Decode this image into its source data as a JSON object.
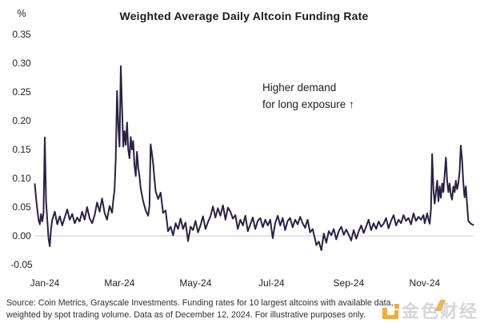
{
  "title": "Weighted Average Daily Altcoin Funding Rate",
  "y_axis": {
    "unit_label": "%"
  },
  "annotation": {
    "line1": "Higher demand",
    "line2": "for long exposure ↑"
  },
  "footer": {
    "line1": "Source: Coin Metrics, Grayscale Investments. Funding rates for 10 largest altcoins with available data,",
    "line2": "weighted by spot trading volume. Data as of December 12, 2024. For illustrative purposes only."
  },
  "watermark": {
    "text": "金色财经",
    "logo_color": "#f5a41e"
  },
  "colors": {
    "line": "#2b2144",
    "gridline": "#c9c9c9",
    "text": "#1d1d1d"
  },
  "chart_data": {
    "type": "line",
    "title": "Weighted Average Daily Altcoin Funding Rate",
    "xlabel": "",
    "ylabel": "%",
    "ylim": [
      -0.05,
      0.35
    ],
    "xlim_days": [
      -8,
      346
    ],
    "x_unit": "days from 2024-01-01 (negative = late Dec 2023); data through Dec 12, 2024",
    "grid": "single horizontal gridline at y=0.00 only",
    "legend": "none",
    "gridline_y": 0.0,
    "y_ticks": [
      {
        "label": "0.35",
        "value": 0.35
      },
      {
        "label": "0.30",
        "value": 0.3
      },
      {
        "label": "0.25",
        "value": 0.25
      },
      {
        "label": "0.20",
        "value": 0.2
      },
      {
        "label": "0.15",
        "value": 0.15
      },
      {
        "label": "0.10",
        "value": 0.1
      },
      {
        "label": "0.05",
        "value": 0.05
      },
      {
        "label": "0.00",
        "value": 0.0
      },
      {
        "label": "-0.05",
        "value": -0.05
      }
    ],
    "x_ticks": [
      {
        "label": "Jan-24",
        "day": 0
      },
      {
        "label": "Mar-24",
        "day": 60
      },
      {
        "label": "May-24",
        "day": 121
      },
      {
        "label": "Jul-24",
        "day": 182
      },
      {
        "label": "Sep-24",
        "day": 244
      },
      {
        "label": "Nov-24",
        "day": 305
      }
    ],
    "annotations": [
      "Higher demand for long exposure ↑"
    ],
    "series": [
      {
        "name": "Weighted average daily altcoin funding rate (%)",
        "color": "#2b2144",
        "points": [
          [
            -8,
            0.09
          ],
          [
            -7,
            0.065
          ],
          [
            -6,
            0.045
          ],
          [
            -5,
            0.028
          ],
          [
            -4,
            0.02
          ],
          [
            -3,
            0.038
          ],
          [
            -2,
            0.025
          ],
          [
            -1,
            0.04
          ],
          [
            0,
            0.171
          ],
          [
            1,
            0.06
          ],
          [
            2,
            0.028
          ],
          [
            3,
            -0.005
          ],
          [
            4,
            -0.018
          ],
          [
            5,
            0.012
          ],
          [
            6,
            0.028
          ],
          [
            8,
            0.042
          ],
          [
            10,
            0.02
          ],
          [
            12,
            0.034
          ],
          [
            14,
            0.018
          ],
          [
            16,
            0.032
          ],
          [
            18,
            0.046
          ],
          [
            20,
            0.028
          ],
          [
            22,
            0.038
          ],
          [
            24,
            0.022
          ],
          [
            26,
            0.032
          ],
          [
            28,
            0.025
          ],
          [
            30,
            0.042
          ],
          [
            32,
            0.028
          ],
          [
            34,
            0.05
          ],
          [
            36,
            0.03
          ],
          [
            38,
            0.022
          ],
          [
            40,
            0.036
          ],
          [
            42,
            0.058
          ],
          [
            44,
            0.042
          ],
          [
            46,
            0.065
          ],
          [
            48,
            0.04
          ],
          [
            50,
            0.028
          ],
          [
            52,
            0.052
          ],
          [
            54,
            0.04
          ],
          [
            55,
            0.062
          ],
          [
            56,
            0.08
          ],
          [
            57,
            0.135
          ],
          [
            58,
            0.252
          ],
          [
            59,
            0.19
          ],
          [
            60,
            0.155
          ],
          [
            61,
            0.295
          ],
          [
            62,
            0.225
          ],
          [
            63,
            0.155
          ],
          [
            64,
            0.182
          ],
          [
            65,
            0.158
          ],
          [
            66,
            0.197
          ],
          [
            67,
            0.15
          ],
          [
            68,
            0.135
          ],
          [
            69,
            0.172
          ],
          [
            70,
            0.15
          ],
          [
            71,
            0.165
          ],
          [
            72,
            0.122
          ],
          [
            73,
            0.104
          ],
          [
            74,
            0.146
          ],
          [
            75,
            0.118
          ],
          [
            76,
            0.104
          ],
          [
            77,
            0.082
          ],
          [
            79,
            0.06
          ],
          [
            81,
            0.044
          ],
          [
            83,
            0.035
          ],
          [
            84,
            0.052
          ],
          [
            85,
            0.159
          ],
          [
            86,
            0.143
          ],
          [
            87,
            0.125
          ],
          [
            88,
            0.1
          ],
          [
            89,
            0.077
          ],
          [
            91,
            0.064
          ],
          [
            93,
            0.075
          ],
          [
            95,
            0.04
          ],
          [
            97,
            0.044
          ],
          [
            99,
            0.008
          ],
          [
            101,
            0.016
          ],
          [
            103,
            0.001
          ],
          [
            105,
            0.022
          ],
          [
            107,
            0.012
          ],
          [
            109,
            0.03
          ],
          [
            111,
            0.012
          ],
          [
            113,
            0.023
          ],
          [
            115,
            -0.009
          ],
          [
            117,
            0.016
          ],
          [
            119,
            0.01
          ],
          [
            121,
            0.026
          ],
          [
            123,
            0.006
          ],
          [
            125,
            0.018
          ],
          [
            127,
            0.034
          ],
          [
            129,
            0.012
          ],
          [
            131,
            0.024
          ],
          [
            133,
            0.034
          ],
          [
            135,
            0.051
          ],
          [
            137,
            0.032
          ],
          [
            139,
            0.048
          ],
          [
            141,
            0.035
          ],
          [
            143,
            0.053
          ],
          [
            145,
            0.028
          ],
          [
            147,
            0.049
          ],
          [
            149,
            0.042
          ],
          [
            151,
            0.03
          ],
          [
            153,
            0.036
          ],
          [
            155,
            0.012
          ],
          [
            157,
            0.028
          ],
          [
            159,
            0.018
          ],
          [
            161,
            0.035
          ],
          [
            163,
            0.008
          ],
          [
            165,
            0.02
          ],
          [
            167,
            0.032
          ],
          [
            169,
            0.012
          ],
          [
            171,
            0.026
          ],
          [
            173,
            0.031
          ],
          [
            175,
            0.015
          ],
          [
            177,
            0.028
          ],
          [
            179,
            0.018
          ],
          [
            181,
            0.028
          ],
          [
            183,
            -0.004
          ],
          [
            185,
            0.022
          ],
          [
            187,
            0.035
          ],
          [
            189,
            0.018
          ],
          [
            191,
            0.031
          ],
          [
            193,
            0.01
          ],
          [
            195,
            0.026
          ],
          [
            197,
            0.031
          ],
          [
            199,
            0.015
          ],
          [
            201,
            0.028
          ],
          [
            203,
            0.02
          ],
          [
            205,
            0.033
          ],
          [
            207,
            0.022
          ],
          [
            209,
            0.014
          ],
          [
            211,
            0.028
          ],
          [
            213,
            0.006
          ],
          [
            215,
            0.012
          ],
          [
            217,
            -0.006
          ],
          [
            218,
            -0.016
          ],
          [
            220,
            -0.01
          ],
          [
            222,
            -0.025
          ],
          [
            224,
            0.004
          ],
          [
            226,
            -0.012
          ],
          [
            228,
            0.008
          ],
          [
            230,
            0.001
          ],
          [
            232,
            0.012
          ],
          [
            234,
            -0.006
          ],
          [
            236,
            0.008
          ],
          [
            238,
            0.016
          ],
          [
            240,
            0.002
          ],
          [
            242,
            0.011
          ],
          [
            244,
            0.002
          ],
          [
            246,
            -0.008
          ],
          [
            248,
            0.01
          ],
          [
            250,
            -0.005
          ],
          [
            252,
            0.008
          ],
          [
            254,
            0.018
          ],
          [
            256,
            0.005
          ],
          [
            258,
            0.016
          ],
          [
            260,
            0.028
          ],
          [
            262,
            0.01
          ],
          [
            264,
            0.022
          ],
          [
            266,
            0.012
          ],
          [
            268,
            0.025
          ],
          [
            270,
            0.016
          ],
          [
            272,
            0.021
          ],
          [
            274,
            0.031
          ],
          [
            276,
            0.013
          ],
          [
            278,
            0.026
          ],
          [
            280,
            0.036
          ],
          [
            282,
            0.018
          ],
          [
            284,
            0.028
          ],
          [
            286,
            0.022
          ],
          [
            288,
            0.036
          ],
          [
            290,
            0.026
          ],
          [
            292,
            0.031
          ],
          [
            294,
            0.02
          ],
          [
            296,
            0.039
          ],
          [
            298,
            0.026
          ],
          [
            300,
            0.033
          ],
          [
            302,
            0.028
          ],
          [
            304,
            0.036
          ],
          [
            305,
            0.022
          ],
          [
            307,
            0.039
          ],
          [
            308,
            0.028
          ],
          [
            309,
            0.021
          ],
          [
            310,
            0.046
          ],
          [
            311,
            0.142
          ],
          [
            312,
            0.08
          ],
          [
            313,
            0.056
          ],
          [
            314,
            0.076
          ],
          [
            315,
            0.096
          ],
          [
            316,
            0.06
          ],
          [
            317,
            0.086
          ],
          [
            318,
            0.066
          ],
          [
            319,
            0.091
          ],
          [
            320,
            0.076
          ],
          [
            321,
            0.106
          ],
          [
            322,
            0.136
          ],
          [
            323,
            0.096
          ],
          [
            324,
            0.076
          ],
          [
            325,
            0.091
          ],
          [
            326,
            0.071
          ],
          [
            327,
            0.063
          ],
          [
            328,
            0.086
          ],
          [
            329,
            0.076
          ],
          [
            330,
            0.096
          ],
          [
            331,
            0.081
          ],
          [
            332,
            0.091
          ],
          [
            333,
            0.112
          ],
          [
            334,
            0.157
          ],
          [
            335,
            0.132
          ],
          [
            336,
            0.091
          ],
          [
            337,
            0.067
          ],
          [
            338,
            0.086
          ],
          [
            339,
            0.056
          ],
          [
            340,
            0.026
          ],
          [
            342,
            0.021
          ],
          [
            344,
            0.019
          ]
        ]
      }
    ]
  }
}
